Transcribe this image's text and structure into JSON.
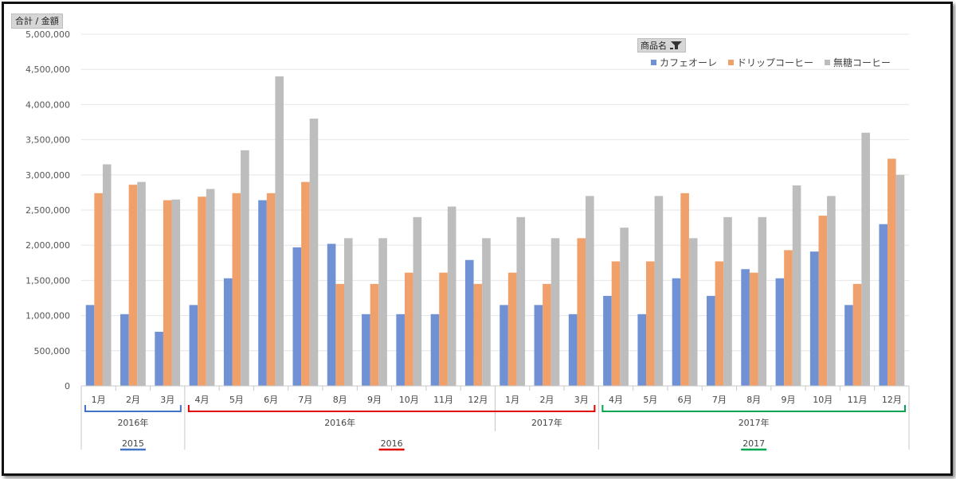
{
  "field_button_label": "合計 / 金額",
  "legend_filter_label": "商品名",
  "colors": {
    "cafe_au_lait": "#7092d4",
    "drip": "#f0a06a",
    "mutou": "#bdbdbd",
    "blue_bracket": "#4472c4",
    "red_bracket": "#e00000",
    "green_bracket": "#00a550"
  },
  "chart_data": {
    "type": "bar",
    "ylim": [
      0,
      5000000
    ],
    "yticks": [
      "5,000,000",
      "4,500,000",
      "4,000,000",
      "3,500,000",
      "3,000,000",
      "2,500,000",
      "2,000,000",
      "1,500,000",
      "1,000,000",
      "500,000",
      "0"
    ],
    "categories": [
      "1月",
      "2月",
      "3月",
      "4月",
      "5月",
      "6月",
      "7月",
      "8月",
      "9月",
      "10月",
      "11月",
      "12月",
      "1月",
      "2月",
      "3月",
      "4月",
      "5月",
      "6月",
      "7月",
      "8月",
      "9月",
      "10月",
      "11月",
      "12月"
    ],
    "series": [
      {
        "name": "カフェオーレ",
        "values": [
          1150000,
          1020000,
          770000,
          1150000,
          1530000,
          2640000,
          1970000,
          2020000,
          1020000,
          1020000,
          1020000,
          1790000,
          1150000,
          1150000,
          1020000,
          1280000,
          1020000,
          1530000,
          1280000,
          1660000,
          1530000,
          1910000,
          1150000,
          2300000
        ]
      },
      {
        "name": "ドリップコーヒー",
        "values": [
          2740000,
          2860000,
          2640000,
          2690000,
          2740000,
          2740000,
          2900000,
          1450000,
          1450000,
          1610000,
          1610000,
          1450000,
          1610000,
          1450000,
          2100000,
          1770000,
          1770000,
          2740000,
          1770000,
          1610000,
          1930000,
          2420000,
          1450000,
          3230000
        ]
      },
      {
        "name": "無糖コーヒー",
        "values": [
          3150000,
          2900000,
          2650000,
          2800000,
          3350000,
          4400000,
          3800000,
          2100000,
          2100000,
          2400000,
          2550000,
          2100000,
          2400000,
          2100000,
          2700000,
          2250000,
          2700000,
          2100000,
          2400000,
          2400000,
          2850000,
          2700000,
          3600000,
          3000000
        ]
      }
    ],
    "year_groups": [
      {
        "label": "2016年",
        "span": [
          0,
          2
        ]
      },
      {
        "label": "2016年",
        "span": [
          3,
          11
        ]
      },
      {
        "label": "2017年",
        "span": [
          12,
          14
        ]
      },
      {
        "label": "2017年",
        "span": [
          15,
          23
        ]
      }
    ],
    "fiscal_groups": [
      {
        "label": "2015",
        "span": [
          0,
          2
        ],
        "color_key": "blue_bracket"
      },
      {
        "label": "2016",
        "span": [
          3,
          14
        ],
        "color_key": "red_bracket"
      },
      {
        "label": "2017",
        "span": [
          15,
          23
        ],
        "color_key": "green_bracket"
      }
    ],
    "grid": true,
    "legend_position": "top-right"
  }
}
